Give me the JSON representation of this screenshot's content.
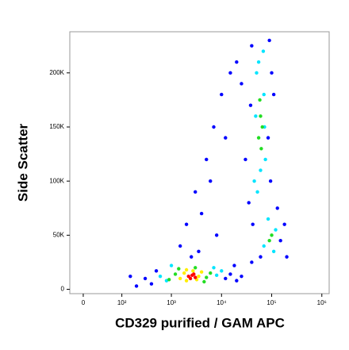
{
  "chart_data": {
    "type": "scatter",
    "x_label": "CD329 purified / GAM APC",
    "y_label": "Side Scatter",
    "xscale": "biexponential",
    "xlim": [
      -23,
      1400000
    ],
    "xticks": [
      0,
      {
        "value": 100,
        "label": "10²"
      },
      {
        "value": 1000,
        "label": "10³"
      },
      {
        "value": 10000,
        "label": "10⁴"
      },
      {
        "value": 100000,
        "label": "10⁵"
      },
      {
        "value": 1000000,
        "label": "10⁶"
      }
    ],
    "ylim": [
      -4000,
      238000
    ],
    "yticks": [
      0,
      {
        "value": 50000,
        "label": "50K"
      },
      {
        "value": 100000,
        "label": "100K"
      },
      {
        "value": 150000,
        "label": "150K"
      },
      {
        "value": 200000,
        "label": "200K"
      }
    ],
    "grid": false,
    "series": [
      {
        "color": "#0000ff",
        "x": [
          300,
          400,
          150,
          12000,
          15000,
          20000,
          500,
          25000,
          200,
          18000,
          1500,
          2000,
          3000,
          5000,
          7000,
          10000,
          15000,
          20000,
          4000,
          6000,
          2500,
          12000,
          25000,
          8000,
          3500,
          35000,
          40000,
          90000,
          100000,
          38000,
          95000,
          42000,
          85000,
          30000,
          110000,
          150000,
          180000,
          200000,
          130000,
          60000,
          40000
        ],
        "values": [
          10000,
          5000,
          12000,
          10000,
          14000,
          8000,
          17000,
          12000,
          3000,
          22000,
          40000,
          60000,
          90000,
          120000,
          150000,
          180000,
          200000,
          210000,
          70000,
          100000,
          30000,
          140000,
          190000,
          50000,
          35000,
          80000,
          225000,
          230000,
          200000,
          170000,
          100000,
          60000,
          140000,
          120000,
          180000,
          45000,
          60000,
          30000,
          75000,
          30000,
          25000
        ]
      },
      {
        "color": "#00e5ff",
        "x": [
          600,
          800,
          8000,
          10000,
          1000,
          7000,
          45000,
          50000,
          70000,
          75000,
          52000,
          68000,
          55000,
          60000,
          48000,
          72000,
          70000,
          120000,
          85000,
          110000
        ],
        "values": [
          12000,
          8000,
          13000,
          17000,
          22000,
          20000,
          100000,
          200000,
          180000,
          120000,
          90000,
          220000,
          210000,
          110000,
          160000,
          150000,
          40000,
          55000,
          65000,
          35000
        ]
      },
      {
        "color": "#22dd22",
        "x": [
          900,
          1200,
          5000,
          6000,
          1400,
          4500,
          3000,
          55000,
          60000,
          65000,
          58000,
          62000,
          90000,
          100000
        ],
        "values": [
          9000,
          14000,
          11000,
          15000,
          19000,
          7000,
          20000,
          140000,
          160000,
          150000,
          175000,
          130000,
          45000,
          50000
        ]
      },
      {
        "color": "#ffee00",
        "x": [
          1500,
          1800,
          2000,
          3500,
          4000,
          3200,
          2000,
          2700
        ],
        "values": [
          10000,
          15000,
          8000,
          12000,
          16000,
          9000,
          18000,
          17000
        ]
      },
      {
        "color": "#ff0000",
        "x": [
          2200,
          2600,
          3000,
          2800,
          2400
        ],
        "values": [
          12000,
          13000,
          11000,
          14000,
          10000
        ]
      }
    ]
  }
}
